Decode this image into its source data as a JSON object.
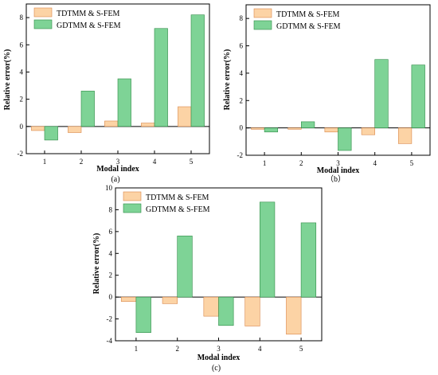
{
  "chart_data": [
    {
      "type": "bar",
      "panel_label": "(a)",
      "categories": [
        "1",
        "2",
        "3",
        "4",
        "5"
      ],
      "series": [
        {
          "name": "TDTMM & S-FEM",
          "values": [
            -0.3,
            -0.45,
            0.4,
            0.25,
            1.45
          ]
        },
        {
          "name": "GDTMM & S-FEM",
          "values": [
            -1.0,
            2.6,
            3.5,
            7.2,
            8.2
          ]
        }
      ],
      "xlabel": "Modal index",
      "ylabel": "Relative error(%)",
      "ylim": [
        -2,
        9
      ],
      "yticks": [
        "-2",
        "0",
        "2",
        "4",
        "6",
        "8"
      ],
      "legend_position": "top-left",
      "grid": false
    },
    {
      "type": "bar",
      "panel_label": "（b）",
      "categories": [
        "1",
        "2",
        "3",
        "4",
        "5"
      ],
      "series": [
        {
          "name": "TDTMM & S-FEM",
          "values": [
            -0.1,
            -0.1,
            -0.3,
            -0.5,
            -1.15
          ]
        },
        {
          "name": "GDTMM & S-FEM",
          "values": [
            -0.3,
            0.45,
            -1.65,
            5.0,
            4.6
          ]
        }
      ],
      "xlabel": "Modal index",
      "ylabel": "Relative error(%)",
      "ylim": [
        -2,
        9
      ],
      "yticks": [
        "-2",
        "0",
        "2",
        "4",
        "6",
        "8"
      ],
      "legend_position": "top-left",
      "grid": false
    },
    {
      "type": "bar",
      "panel_label": "(c)",
      "categories": [
        "1",
        "2",
        "3",
        "4",
        "5"
      ],
      "series": [
        {
          "name": "TDTMM & S-FEM",
          "values": [
            -0.4,
            -0.6,
            -1.75,
            -2.65,
            -3.4
          ]
        },
        {
          "name": "GDTMM & S-FEM",
          "values": [
            -3.25,
            5.6,
            -2.6,
            8.7,
            6.8
          ]
        }
      ],
      "xlabel": "Modal index",
      "ylabel": "Relative error(%)",
      "ylim": [
        -4,
        10
      ],
      "yticks": [
        "-4",
        "-2",
        "0",
        "2",
        "4",
        "6",
        "8",
        "10"
      ],
      "legend_position": "top-left",
      "grid": false
    }
  ],
  "colors": {
    "series_fill": [
      "#fcd3a5",
      "#7ed396"
    ],
    "series_stroke": [
      "#d9874a",
      "#2e8b45"
    ],
    "axis": "#000000"
  }
}
